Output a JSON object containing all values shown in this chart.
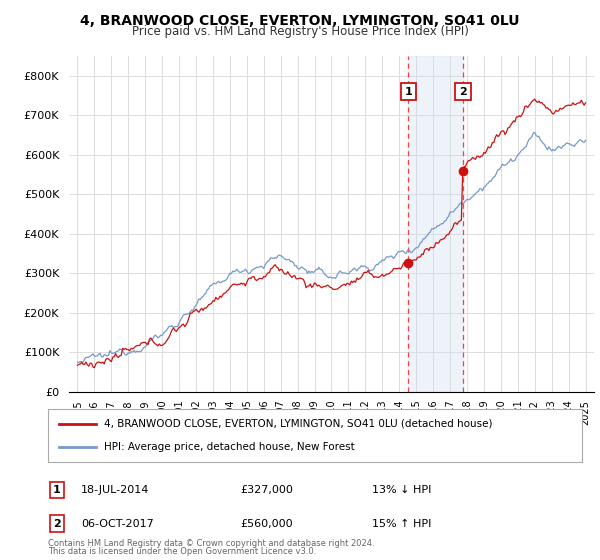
{
  "title": "4, BRANWOOD CLOSE, EVERTON, LYMINGTON, SO41 0LU",
  "subtitle": "Price paid vs. HM Land Registry's House Price Index (HPI)",
  "ylim": [
    0,
    850000
  ],
  "xlim_start": 1994.5,
  "xlim_end": 2025.5,
  "yticks": [
    0,
    100000,
    200000,
    300000,
    400000,
    500000,
    600000,
    700000,
    800000
  ],
  "ytick_labels": [
    "£0",
    "£100K",
    "£200K",
    "£300K",
    "£400K",
    "£500K",
    "£600K",
    "£700K",
    "£800K"
  ],
  "sale1_year": 2014.54,
  "sale1_price": 327000,
  "sale2_year": 2017.76,
  "sale2_price": 560000,
  "sale1_label": "1",
  "sale2_label": "2",
  "sale1_date": "18-JUL-2014",
  "sale2_date": "06-OCT-2017",
  "sale1_amount": "£327,000",
  "sale2_amount": "£560,000",
  "sale1_hpi": "13% ↓ HPI",
  "sale2_hpi": "15% ↑ HPI",
  "hpi_line_color": "#7799cc",
  "property_line_color": "#cc1111",
  "shade_color": "#ccddf0",
  "vline_color": "#ee4444",
  "background_color": "#ffffff",
  "legend_line1": "4, BRANWOOD CLOSE, EVERTON, LYMINGTON, SO41 0LU (detached house)",
  "legend_line2": "HPI: Average price, detached house, New Forest",
  "footer1": "Contains HM Land Registry data © Crown copyright and database right 2024.",
  "footer2": "This data is licensed under the Open Government Licence v3.0."
}
